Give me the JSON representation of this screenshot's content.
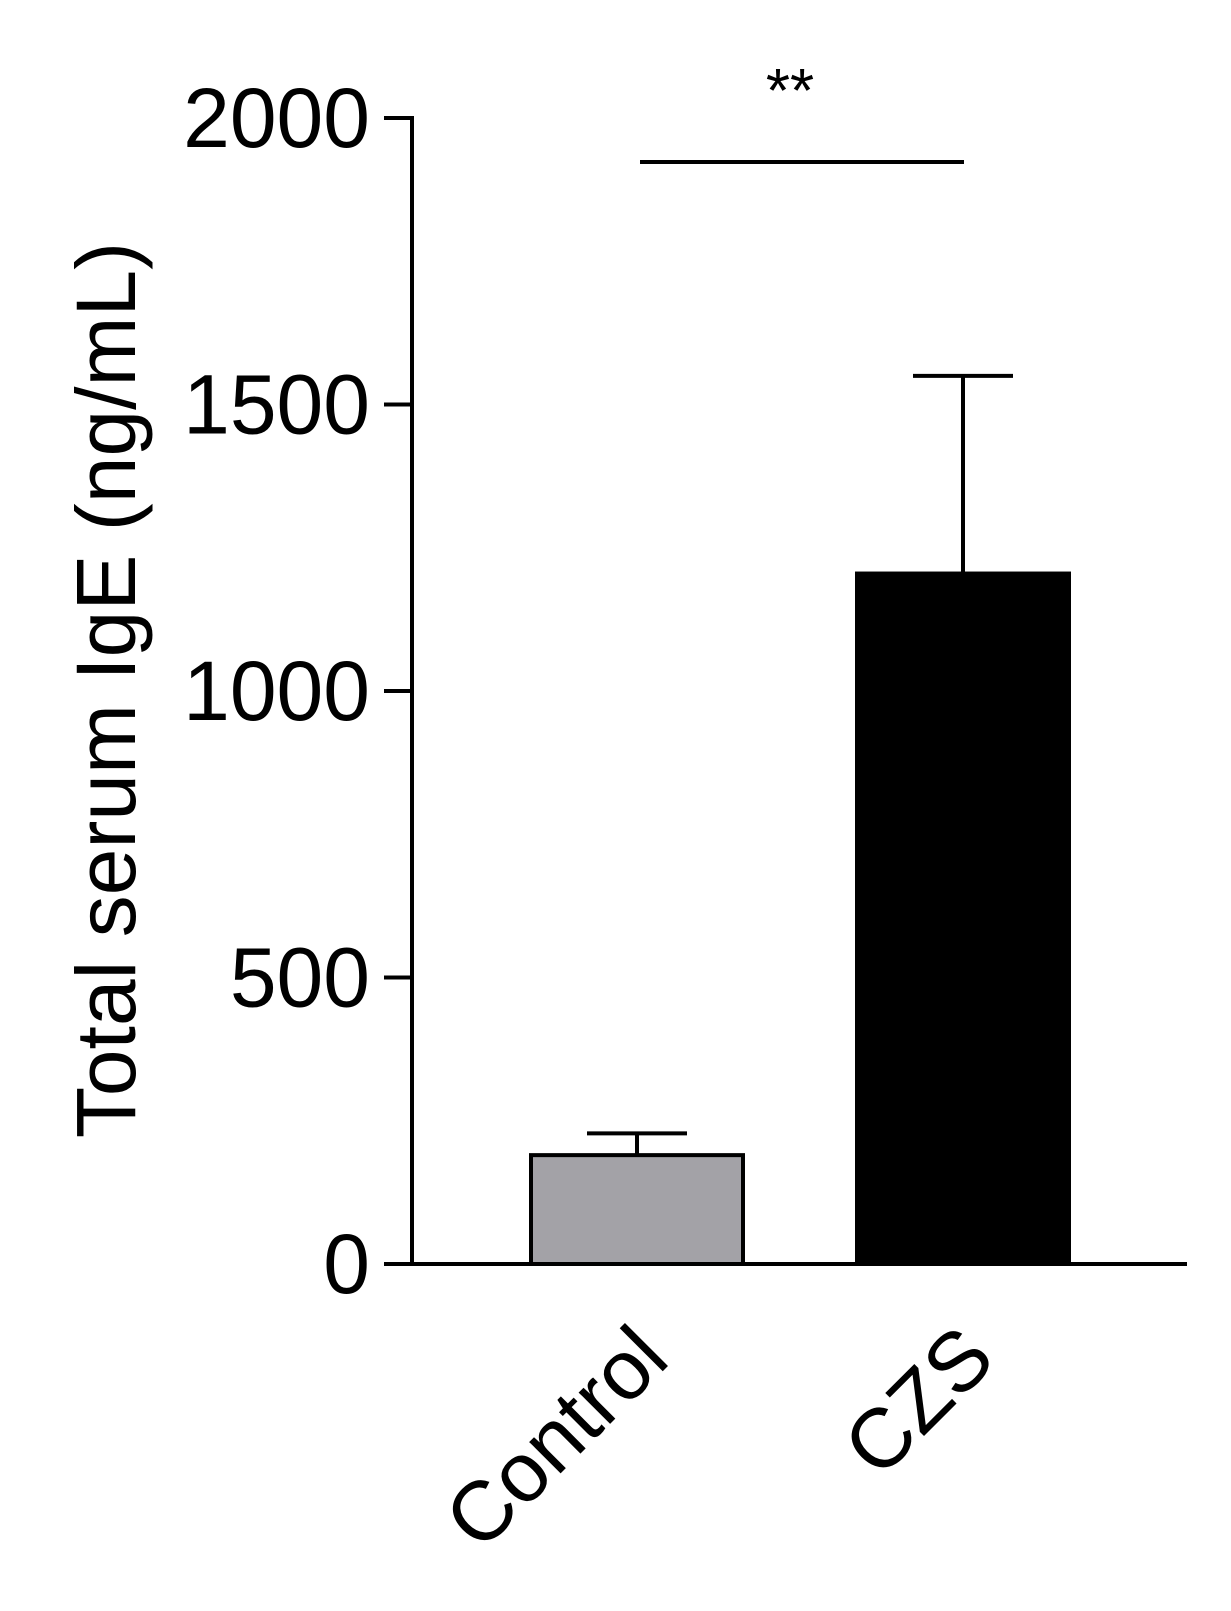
{
  "chart_data": {
    "type": "bar",
    "title": "",
    "xlabel": "",
    "ylabel": "Total serum IgE (ng/mL)",
    "categories": [
      "Control",
      "CZS"
    ],
    "values": [
      190,
      1205
    ],
    "errors": [
      38,
      345
    ],
    "bar_colors": [
      "#a3a2a7",
      "#000000"
    ],
    "ylim": [
      0,
      2000
    ],
    "yticks": [
      0,
      500,
      1000,
      1500,
      2000
    ],
    "ytick_labels": [
      "0",
      "500",
      "1000",
      "1500",
      "2000"
    ],
    "grid": false,
    "legend": "none",
    "significance": {
      "label": "**",
      "between": [
        "Control",
        "CZS"
      ]
    }
  }
}
